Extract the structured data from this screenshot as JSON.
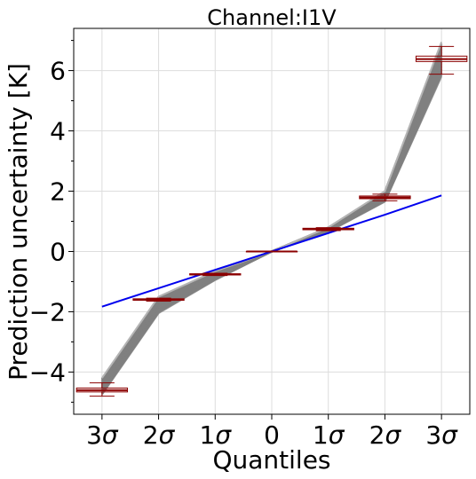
{
  "chart_data": {
    "type": "line",
    "title": "Channel:I1V",
    "xlabel": "Quantiles",
    "ylabel": "Prediction uncertainty [K]",
    "categories": [
      "3σ",
      "2σ",
      "1σ",
      "0",
      "1σ",
      "2σ",
      "3σ"
    ],
    "x": [
      -3,
      -2,
      -1,
      0,
      1,
      2,
      3
    ],
    "xlim": [
      -3.5,
      3.5
    ],
    "ylim": [
      -5.4,
      7.4
    ],
    "yticks": [
      -4,
      -2,
      0,
      2,
      4,
      6
    ],
    "ytick_labels": [
      "−4",
      "−2",
      "0",
      "2",
      "4",
      "6"
    ],
    "grid": true,
    "series": [
      {
        "name": "",
        "style": "ensemble-band",
        "color": "#808080",
        "lower": [
          -4.75,
          -2.05,
          -0.95,
          0.0,
          0.65,
          1.65,
          5.8
        ],
        "upper": [
          -4.2,
          -1.5,
          -0.65,
          0.0,
          0.8,
          2.0,
          6.95
        ]
      },
      {
        "name": "",
        "style": "reference-line",
        "color": "#0000ee",
        "values": [
          -1.83,
          -1.22,
          -0.61,
          0.0,
          0.61,
          1.22,
          1.86
        ]
      }
    ],
    "boxes": [
      {
        "x": -3,
        "q1": -4.66,
        "median": -4.6,
        "q3": -4.53,
        "whisker_low": -4.8,
        "whisker_high": -4.36
      },
      {
        "x": -2,
        "q1": -1.62,
        "median": -1.6,
        "q3": -1.57,
        "whisker_low": -1.65,
        "whisker_high": -1.55
      },
      {
        "x": -1,
        "q1": -0.78,
        "median": -0.76,
        "q3": -0.74,
        "whisker_low": -0.8,
        "whisker_high": -0.72
      },
      {
        "x": 0,
        "q1": 0.0,
        "median": 0.0,
        "q3": 0.0,
        "whisker_low": 0.0,
        "whisker_high": 0.0
      },
      {
        "x": 1,
        "q1": 0.72,
        "median": 0.74,
        "q3": 0.77,
        "whisker_low": 0.69,
        "whisker_high": 0.79
      },
      {
        "x": 2,
        "q1": 1.75,
        "median": 1.79,
        "q3": 1.84,
        "whisker_low": 1.68,
        "whisker_high": 1.9
      },
      {
        "x": 3,
        "q1": 6.3,
        "median": 6.38,
        "q3": 6.48,
        "whisker_low": 5.88,
        "whisker_high": 6.8
      }
    ],
    "colors": {
      "box": "#8b0000",
      "ensemble": "#808080",
      "reference": "#0000ee",
      "grid": "#dddddd"
    }
  }
}
